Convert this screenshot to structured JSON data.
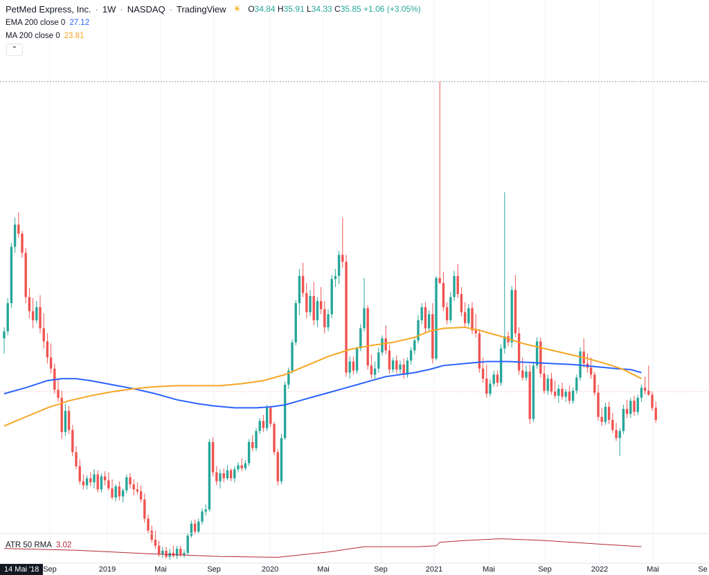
{
  "header": {
    "symbol": "PetMed Express, Inc.",
    "interval": "1W",
    "exchange": "NASDAQ",
    "source": "TradingView",
    "sun_icon": "sun-icon",
    "ohlc": {
      "o_label": "O",
      "o": "34.84",
      "h_label": "H",
      "h": "35.91",
      "l_label": "L",
      "l": "34.33",
      "c_label": "C",
      "c": "35.85",
      "change": "+1.06 (+3.05%)"
    }
  },
  "indicators": {
    "ema": {
      "label": "EMA 200 close 0",
      "value": "27.12",
      "color": "#2962ff"
    },
    "ma": {
      "label": "MA 200 close 0",
      "value": "23.81",
      "color": "#f5a623"
    },
    "atr": {
      "label": "ATR 50 RMA",
      "value": "3.02",
      "color": "#b22833"
    }
  },
  "collapse_icon": "chevron-up-icon",
  "colors": {
    "up": "#26a69a",
    "down": "#ef5350",
    "grid": "#f0f3fa"
  },
  "time_axis": {
    "cursor_label": "14 Mai '18",
    "ticks": [
      "Sep",
      "2019",
      "Mai",
      "Sep",
      "2020",
      "Mai",
      "Sep",
      "2021",
      "Mai",
      "Sep",
      "2022",
      "Mai",
      "Se"
    ]
  },
  "chart_data": {
    "type": "candlestick",
    "interval": "1W",
    "ylim": [
      14,
      58
    ],
    "ohlc_points": [
      [
        30.5,
        31.6,
        29.0,
        31.2
      ],
      [
        31.2,
        34.5,
        30.8,
        34.0
      ],
      [
        34.0,
        40.0,
        33.5,
        39.6
      ],
      [
        39.6,
        42.5,
        39.0,
        41.8
      ],
      [
        41.8,
        43.0,
        40.5,
        40.9
      ],
      [
        40.9,
        41.2,
        38.5,
        39.0
      ],
      [
        39.0,
        39.5,
        34.0,
        34.6
      ],
      [
        34.6,
        35.5,
        32.5,
        33.2
      ],
      [
        33.2,
        34.5,
        31.5,
        32.3
      ],
      [
        32.3,
        34.2,
        32.0,
        33.6
      ],
      [
        33.6,
        34.8,
        31.0,
        31.5
      ],
      [
        31.5,
        33.0,
        29.5,
        30.2
      ],
      [
        30.2,
        31.0,
        28.0,
        28.6
      ],
      [
        28.6,
        30.0,
        27.0,
        27.5
      ],
      [
        27.5,
        28.0,
        25.0,
        25.4
      ],
      [
        25.4,
        26.5,
        24.2,
        24.6
      ],
      [
        24.6,
        25.3,
        20.5,
        21.2
      ],
      [
        21.2,
        24.0,
        20.8,
        23.3
      ],
      [
        23.3,
        23.8,
        21.0,
        21.4
      ],
      [
        21.4,
        21.9,
        18.8,
        19.2
      ],
      [
        19.2,
        19.8,
        17.5,
        17.8
      ],
      [
        17.8,
        18.5,
        16.0,
        16.3
      ],
      [
        16.3,
        17.0,
        15.5,
        15.9
      ],
      [
        15.9,
        16.9,
        15.5,
        16.6
      ],
      [
        16.6,
        17.2,
        15.8,
        16.2
      ],
      [
        16.2,
        17.5,
        15.6,
        17.0
      ],
      [
        17.0,
        17.4,
        15.2,
        15.5
      ],
      [
        15.5,
        17.1,
        15.2,
        16.8
      ],
      [
        16.8,
        17.3,
        15.9,
        16.4
      ],
      [
        16.4,
        17.2,
        15.4,
        15.6
      ],
      [
        15.6,
        16.5,
        14.5,
        14.7
      ],
      [
        14.7,
        16.0,
        14.3,
        15.8
      ],
      [
        15.8,
        16.3,
        14.4,
        14.8
      ],
      [
        14.8,
        15.6,
        14.2,
        15.4
      ],
      [
        15.4,
        17.0,
        15.1,
        16.7
      ],
      [
        16.7,
        17.1,
        15.6,
        16.0
      ],
      [
        16.0,
        16.5,
        14.9,
        15.5
      ],
      [
        15.5,
        16.2,
        15.0,
        15.3
      ],
      [
        15.3,
        15.9,
        14.2,
        14.5
      ],
      [
        14.5,
        15.1,
        12.2,
        12.6
      ],
      [
        12.6,
        13.0,
        11.1,
        11.4
      ],
      [
        11.4,
        11.9,
        10.2,
        10.5
      ],
      [
        10.5,
        11.4,
        9.6,
        9.9
      ],
      [
        9.9,
        10.4,
        8.8,
        9.1
      ],
      [
        9.1,
        9.8,
        8.7,
        9.4
      ],
      [
        9.4,
        9.8,
        8.6,
        8.8
      ],
      [
        8.8,
        9.6,
        8.5,
        9.2
      ],
      [
        9.2,
        9.9,
        8.7,
        8.9
      ],
      [
        8.9,
        9.9,
        8.6,
        9.6
      ],
      [
        9.6,
        9.9,
        8.8,
        9.0
      ],
      [
        9.0,
        9.5,
        8.7,
        9.2
      ],
      [
        9.2,
        11.2,
        9.0,
        10.9
      ],
      [
        10.9,
        12.4,
        10.7,
        12.1
      ],
      [
        12.1,
        12.5,
        11.0,
        11.3
      ],
      [
        11.3,
        12.6,
        11.1,
        12.3
      ],
      [
        12.3,
        13.6,
        12.0,
        13.3
      ],
      [
        13.3,
        14.0,
        12.9,
        13.5
      ],
      [
        13.5,
        20.5,
        13.3,
        20.2
      ],
      [
        20.2,
        20.7,
        16.8,
        17.2
      ],
      [
        17.2,
        17.8,
        15.9,
        16.3
      ],
      [
        16.3,
        17.5,
        15.6,
        17.1
      ],
      [
        17.1,
        17.6,
        16.2,
        16.6
      ],
      [
        16.6,
        17.9,
        16.4,
        17.4
      ],
      [
        17.4,
        17.6,
        16.3,
        16.6
      ],
      [
        16.6,
        17.8,
        16.2,
        17.5
      ],
      [
        17.5,
        18.2,
        17.2,
        17.9
      ],
      [
        17.9,
        18.6,
        17.3,
        17.6
      ],
      [
        17.6,
        18.4,
        17.4,
        18.1
      ],
      [
        18.1,
        20.5,
        17.8,
        20.2
      ],
      [
        20.2,
        20.9,
        19.3,
        19.6
      ],
      [
        19.6,
        21.6,
        19.3,
        21.3
      ],
      [
        21.3,
        22.6,
        21.0,
        22.3
      ],
      [
        22.3,
        22.9,
        21.2,
        21.6
      ],
      [
        21.6,
        23.9,
        21.3,
        23.6
      ],
      [
        23.6,
        23.8,
        21.7,
        22.0
      ],
      [
        22.0,
        22.2,
        18.9,
        19.2
      ],
      [
        19.2,
        19.5,
        15.9,
        16.3
      ],
      [
        16.3,
        21.0,
        16.0,
        20.6
      ],
      [
        20.6,
        26.2,
        20.4,
        25.9
      ],
      [
        25.9,
        27.6,
        25.5,
        27.3
      ],
      [
        27.3,
        30.4,
        27.0,
        30.1
      ],
      [
        30.1,
        34.3,
        29.8,
        34.0
      ],
      [
        34.0,
        37.4,
        32.8,
        36.7
      ],
      [
        36.7,
        38.0,
        34.6,
        35.0
      ],
      [
        35.0,
        36.0,
        32.5,
        33.1
      ],
      [
        33.1,
        35.3,
        32.7,
        34.7
      ],
      [
        34.7,
        36.1,
        31.8,
        32.3
      ],
      [
        32.3,
        34.6,
        31.6,
        34.2
      ],
      [
        34.2,
        35.6,
        32.9,
        33.4
      ],
      [
        33.4,
        34.2,
        31.0,
        31.6
      ],
      [
        31.6,
        33.4,
        31.2,
        32.9
      ],
      [
        32.9,
        36.8,
        32.5,
        36.4
      ],
      [
        36.4,
        37.4,
        35.6,
        36.7
      ],
      [
        36.7,
        39.2,
        35.9,
        38.8
      ],
      [
        38.8,
        42.5,
        37.5,
        38.1
      ],
      [
        38.1,
        38.8,
        26.7,
        27.1
      ],
      [
        27.1,
        28.7,
        26.5,
        28.2
      ],
      [
        28.2,
        28.7,
        26.9,
        27.3
      ],
      [
        27.3,
        29.7,
        27.0,
        29.5
      ],
      [
        29.5,
        31.9,
        29.2,
        31.5
      ],
      [
        31.5,
        36.5,
        31.2,
        33.5
      ],
      [
        33.5,
        33.8,
        27.4,
        27.8
      ],
      [
        27.8,
        28.9,
        26.5,
        26.9
      ],
      [
        26.9,
        28.2,
        26.5,
        27.5
      ],
      [
        27.5,
        29.6,
        27.1,
        29.1
      ],
      [
        29.1,
        30.8,
        28.8,
        30.5
      ],
      [
        30.5,
        31.8,
        28.9,
        29.3
      ],
      [
        29.3,
        29.9,
        27.0,
        27.4
      ],
      [
        27.4,
        28.6,
        27.1,
        28.3
      ],
      [
        28.3,
        28.8,
        27.0,
        27.4
      ],
      [
        27.4,
        28.3,
        26.9,
        27.9
      ],
      [
        27.9,
        28.5,
        26.5,
        26.9
      ],
      [
        26.9,
        28.6,
        26.6,
        28.3
      ],
      [
        28.3,
        29.6,
        27.9,
        29.3
      ],
      [
        29.3,
        30.6,
        28.9,
        30.3
      ],
      [
        30.3,
        32.8,
        30.0,
        32.3
      ],
      [
        32.3,
        34.0,
        31.9,
        33.6
      ],
      [
        33.6,
        34.1,
        31.0,
        31.5
      ],
      [
        31.5,
        33.3,
        31.1,
        32.9
      ],
      [
        32.9,
        34.0,
        28.0,
        28.5
      ],
      [
        28.5,
        36.7,
        28.3,
        36.5
      ],
      [
        36.5,
        56.0,
        35.9,
        36.0
      ],
      [
        36.0,
        37.1,
        33.2,
        33.6
      ],
      [
        33.6,
        34.1,
        31.9,
        32.3
      ],
      [
        32.3,
        35.1,
        32.0,
        34.6
      ],
      [
        34.6,
        37.2,
        34.2,
        36.7
      ],
      [
        36.7,
        37.9,
        34.5,
        34.9
      ],
      [
        34.9,
        35.6,
        32.7,
        33.1
      ],
      [
        33.1,
        34.1,
        31.6,
        32.0
      ],
      [
        32.0,
        33.9,
        31.7,
        33.5
      ],
      [
        33.5,
        34.1,
        30.9,
        31.3
      ],
      [
        31.3,
        32.9,
        30.6,
        31.0
      ],
      [
        31.0,
        31.4,
        27.1,
        27.5
      ],
      [
        27.5,
        28.6,
        26.1,
        26.5
      ],
      [
        26.5,
        27.9,
        24.6,
        25.0
      ],
      [
        25.0,
        26.4,
        24.7,
        26.0
      ],
      [
        26.0,
        27.3,
        25.7,
        26.9
      ],
      [
        26.9,
        27.3,
        25.7,
        26.1
      ],
      [
        26.1,
        29.9,
        25.8,
        29.5
      ],
      [
        29.5,
        45.0,
        29.0,
        30.7
      ],
      [
        30.7,
        31.2,
        29.7,
        30.1
      ],
      [
        30.1,
        35.7,
        29.6,
        35.3
      ],
      [
        35.3,
        36.8,
        30.6,
        31.0
      ],
      [
        31.0,
        31.6,
        26.9,
        27.3
      ],
      [
        27.3,
        28.6,
        26.3,
        26.6
      ],
      [
        26.6,
        27.8,
        26.3,
        27.2
      ],
      [
        27.2,
        27.9,
        22.0,
        22.5
      ],
      [
        22.5,
        28.2,
        22.2,
        27.8
      ],
      [
        27.8,
        30.6,
        27.5,
        30.2
      ],
      [
        30.2,
        30.6,
        26.6,
        27.0
      ],
      [
        27.0,
        27.8,
        25.0,
        25.3
      ],
      [
        25.3,
        26.9,
        24.9,
        26.5
      ],
      [
        26.5,
        27.1,
        24.9,
        25.2
      ],
      [
        25.2,
        26.3,
        24.5,
        24.8
      ],
      [
        24.8,
        25.9,
        24.1,
        25.5
      ],
      [
        25.5,
        26.1,
        24.4,
        24.7
      ],
      [
        24.7,
        25.5,
        24.2,
        25.2
      ],
      [
        25.2,
        25.8,
        24.0,
        24.3
      ],
      [
        24.3,
        25.6,
        24.0,
        25.3
      ],
      [
        25.3,
        26.9,
        25.0,
        26.6
      ],
      [
        26.6,
        29.6,
        26.3,
        29.2
      ],
      [
        29.2,
        30.5,
        27.6,
        28.0
      ],
      [
        28.0,
        29.0,
        27.1,
        27.6
      ],
      [
        27.6,
        28.6,
        26.5,
        26.9
      ],
      [
        26.9,
        27.2,
        24.8,
        25.1
      ],
      [
        25.1,
        25.9,
        22.3,
        22.7
      ],
      [
        22.7,
        23.6,
        21.8,
        22.2
      ],
      [
        22.2,
        24.1,
        21.9,
        23.7
      ],
      [
        23.7,
        24.2,
        22.0,
        22.4
      ],
      [
        22.4,
        23.1,
        21.1,
        21.4
      ],
      [
        21.4,
        22.1,
        20.3,
        20.6
      ],
      [
        20.6,
        21.6,
        18.8,
        21.3
      ],
      [
        21.3,
        23.9,
        21.0,
        23.5
      ],
      [
        23.5,
        24.4,
        22.6,
        23.0
      ],
      [
        23.0,
        24.6,
        22.6,
        24.3
      ],
      [
        24.3,
        24.8,
        22.8,
        23.2
      ],
      [
        23.2,
        24.9,
        22.9,
        24.6
      ],
      [
        24.6,
        25.9,
        24.2,
        25.6
      ],
      [
        25.6,
        26.7,
        24.9,
        25.3
      ],
      [
        25.3,
        27.8,
        24.8,
        24.9
      ],
      [
        24.9,
        25.2,
        23.3,
        23.6
      ],
      [
        23.6,
        24.2,
        22.1,
        22.4
      ]
    ],
    "ema200": [
      [
        0,
        25.0
      ],
      [
        6,
        25.6
      ],
      [
        12,
        26.3
      ],
      [
        16,
        26.5
      ],
      [
        20,
        26.5
      ],
      [
        24,
        26.3
      ],
      [
        30,
        25.9
      ],
      [
        36,
        25.5
      ],
      [
        42,
        25.0
      ],
      [
        48,
        24.4
      ],
      [
        54,
        24.0
      ],
      [
        58,
        23.8
      ],
      [
        64,
        23.6
      ],
      [
        70,
        23.6
      ],
      [
        74,
        23.7
      ],
      [
        78,
        23.9
      ],
      [
        82,
        24.3
      ],
      [
        86,
        24.7
      ],
      [
        90,
        25.1
      ],
      [
        94,
        25.5
      ],
      [
        98,
        25.9
      ],
      [
        102,
        26.3
      ],
      [
        106,
        26.7
      ],
      [
        110,
        26.9
      ],
      [
        114,
        27.1
      ],
      [
        118,
        27.4
      ],
      [
        122,
        27.8
      ],
      [
        128,
        28.0
      ],
      [
        134,
        28.2
      ],
      [
        140,
        28.2
      ],
      [
        146,
        28.1
      ],
      [
        152,
        28.0
      ],
      [
        158,
        27.9
      ],
      [
        164,
        27.7
      ],
      [
        170,
        27.5
      ],
      [
        174,
        27.4
      ],
      [
        177,
        27.1
      ]
    ],
    "ma200": [
      [
        0,
        21.8
      ],
      [
        6,
        22.7
      ],
      [
        12,
        23.6
      ],
      [
        18,
        24.3
      ],
      [
        24,
        24.8
      ],
      [
        30,
        25.2
      ],
      [
        36,
        25.5
      ],
      [
        42,
        25.7
      ],
      [
        48,
        25.8
      ],
      [
        54,
        25.8
      ],
      [
        60,
        25.8
      ],
      [
        66,
        26.0
      ],
      [
        72,
        26.3
      ],
      [
        78,
        26.9
      ],
      [
        84,
        27.8
      ],
      [
        90,
        28.7
      ],
      [
        96,
        29.4
      ],
      [
        102,
        29.8
      ],
      [
        108,
        30.1
      ],
      [
        114,
        30.6
      ],
      [
        118,
        31.2
      ],
      [
        122,
        31.5
      ],
      [
        128,
        31.6
      ],
      [
        132,
        31.3
      ],
      [
        138,
        30.7
      ],
      [
        144,
        30.0
      ],
      [
        150,
        29.5
      ],
      [
        156,
        29.0
      ],
      [
        162,
        28.5
      ],
      [
        168,
        27.9
      ],
      [
        172,
        27.4
      ],
      [
        177,
        26.5
      ]
    ],
    "atr50": [
      [
        0,
        3.2
      ],
      [
        20,
        3.0
      ],
      [
        40,
        2.6
      ],
      [
        60,
        2.3
      ],
      [
        76,
        2.2
      ],
      [
        90,
        2.8
      ],
      [
        100,
        3.4
      ],
      [
        115,
        3.4
      ],
      [
        120,
        3.5
      ],
      [
        121,
        3.9
      ],
      [
        128,
        4.1
      ],
      [
        138,
        4.3
      ],
      [
        150,
        4.1
      ],
      [
        165,
        3.7
      ],
      [
        177,
        3.4
      ]
    ]
  }
}
